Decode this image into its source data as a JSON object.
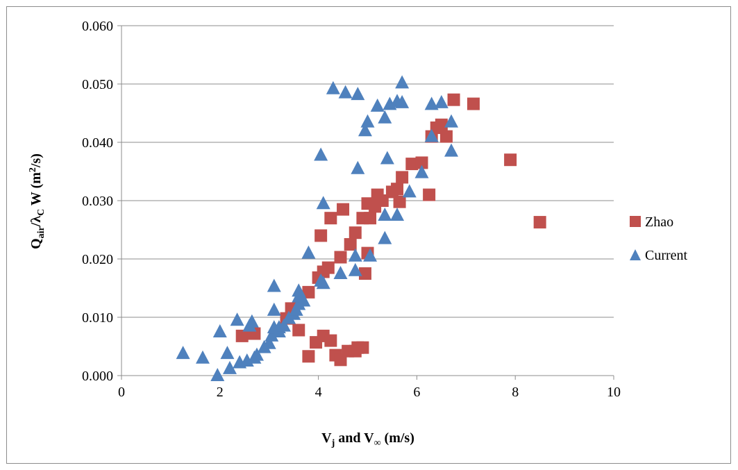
{
  "chart_data": {
    "type": "scatter",
    "xlabel": {
      "v": "V",
      "v_sub": "j",
      "and": " and V",
      "inf_sub": "∞",
      "units": " (m/s)"
    },
    "ylabel": {
      "q": "Q",
      "q_sub": "air",
      "slash": "/λ",
      "c_sub": "C",
      "w": " W (m",
      "sup": "2",
      "tail": "/s)"
    },
    "xlim": [
      0,
      10
    ],
    "ylim": [
      0,
      0.06
    ],
    "x_ticks": [
      "0",
      "2",
      "4",
      "6",
      "8",
      "10"
    ],
    "y_ticks": [
      "0.000",
      "0.010",
      "0.020",
      "0.030",
      "0.040",
      "0.050",
      "0.060"
    ],
    "grid": "horizontal",
    "legend_position": "right",
    "series": [
      {
        "name": "Zhao",
        "marker": "square",
        "color": "#c0504d",
        "points": [
          [
            2.45,
            0.0068
          ],
          [
            2.7,
            0.0072
          ],
          [
            3.35,
            0.0098
          ],
          [
            3.45,
            0.0115
          ],
          [
            3.6,
            0.0078
          ],
          [
            3.8,
            0.0033
          ],
          [
            3.8,
            0.0143
          ],
          [
            3.95,
            0.0057
          ],
          [
            4.0,
            0.0168
          ],
          [
            4.05,
            0.024
          ],
          [
            4.1,
            0.0068
          ],
          [
            4.1,
            0.0178
          ],
          [
            4.2,
            0.0185
          ],
          [
            4.25,
            0.006
          ],
          [
            4.25,
            0.027
          ],
          [
            4.35,
            0.0035
          ],
          [
            4.45,
            0.0027
          ],
          [
            4.45,
            0.0203
          ],
          [
            4.5,
            0.0285
          ],
          [
            4.6,
            0.0042
          ],
          [
            4.65,
            0.0225
          ],
          [
            4.75,
            0.0042
          ],
          [
            4.75,
            0.0245
          ],
          [
            4.8,
            0.0048
          ],
          [
            4.9,
            0.0048
          ],
          [
            4.9,
            0.027
          ],
          [
            4.95,
            0.0175
          ],
          [
            5.0,
            0.0295
          ],
          [
            5.0,
            0.021
          ],
          [
            5.05,
            0.027
          ],
          [
            5.15,
            0.029
          ],
          [
            5.2,
            0.031
          ],
          [
            5.3,
            0.03
          ],
          [
            5.5,
            0.0315
          ],
          [
            5.6,
            0.032
          ],
          [
            5.65,
            0.0298
          ],
          [
            5.7,
            0.034
          ],
          [
            5.9,
            0.0363
          ],
          [
            6.1,
            0.0365
          ],
          [
            6.25,
            0.031
          ],
          [
            6.3,
            0.041
          ],
          [
            6.4,
            0.0425
          ],
          [
            6.5,
            0.043
          ],
          [
            6.6,
            0.041
          ],
          [
            6.75,
            0.0473
          ],
          [
            7.15,
            0.0466
          ],
          [
            7.9,
            0.037
          ],
          [
            8.5,
            0.0263
          ]
        ]
      },
      {
        "name": "Current",
        "marker": "triangle",
        "color": "#4f81bd",
        "points": [
          [
            1.25,
            0.0038
          ],
          [
            1.65,
            0.003
          ],
          [
            1.95,
            0.0
          ],
          [
            2.0,
            0.0075
          ],
          [
            2.15,
            0.0038
          ],
          [
            2.2,
            0.0012
          ],
          [
            2.35,
            0.0095
          ],
          [
            2.4,
            0.0022
          ],
          [
            2.55,
            0.0025
          ],
          [
            2.6,
            0.0085
          ],
          [
            2.65,
            0.0092
          ],
          [
            2.7,
            0.003
          ],
          [
            2.75,
            0.0035
          ],
          [
            2.9,
            0.0048
          ],
          [
            3.0,
            0.0055
          ],
          [
            3.05,
            0.0068
          ],
          [
            3.1,
            0.0082
          ],
          [
            3.1,
            0.0112
          ],
          [
            3.1,
            0.0153
          ],
          [
            3.2,
            0.0082
          ],
          [
            3.2,
            0.0075
          ],
          [
            3.3,
            0.0085
          ],
          [
            3.4,
            0.0098
          ],
          [
            3.5,
            0.0105
          ],
          [
            3.55,
            0.0112
          ],
          [
            3.6,
            0.0122
          ],
          [
            3.6,
            0.0135
          ],
          [
            3.6,
            0.0145
          ],
          [
            3.7,
            0.0128
          ],
          [
            3.8,
            0.021
          ],
          [
            4.05,
            0.0162
          ],
          [
            4.1,
            0.0158
          ],
          [
            4.1,
            0.0295
          ],
          [
            4.05,
            0.0378
          ],
          [
            4.3,
            0.0492
          ],
          [
            4.45,
            0.0175
          ],
          [
            4.55,
            0.0485
          ],
          [
            4.75,
            0.018
          ],
          [
            4.75,
            0.0205
          ],
          [
            4.8,
            0.0355
          ],
          [
            4.8,
            0.0482
          ],
          [
            4.95,
            0.042
          ],
          [
            5.0,
            0.0435
          ],
          [
            5.05,
            0.0205
          ],
          [
            5.2,
            0.0462
          ],
          [
            5.35,
            0.0235
          ],
          [
            5.35,
            0.0275
          ],
          [
            5.35,
            0.0442
          ],
          [
            5.4,
            0.0372
          ],
          [
            5.45,
            0.0465
          ],
          [
            5.6,
            0.0275
          ],
          [
            5.6,
            0.047
          ],
          [
            5.7,
            0.0468
          ],
          [
            5.7,
            0.0502
          ],
          [
            5.85,
            0.0315
          ],
          [
            6.1,
            0.0348
          ],
          [
            6.3,
            0.041
          ],
          [
            6.3,
            0.0465
          ],
          [
            6.5,
            0.0468
          ],
          [
            6.7,
            0.0385
          ],
          [
            6.7,
            0.0435
          ]
        ]
      }
    ]
  }
}
